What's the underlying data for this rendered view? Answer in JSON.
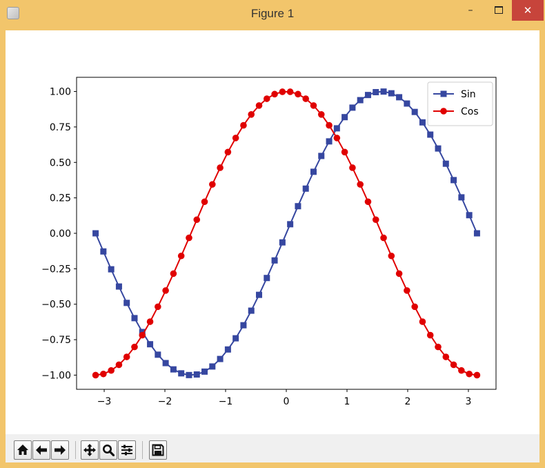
{
  "window": {
    "title": "Figure 1",
    "frame_color": "#f2c56b",
    "close_color": "#c7443b",
    "minimize_glyph": "–",
    "close_glyph": "✕"
  },
  "toolbar": {
    "buttons": [
      "home-icon",
      "back-arrow-icon",
      "forward-arrow-icon",
      "pan-icon",
      "zoom-icon",
      "configure-subplots-icon",
      "save-icon"
    ]
  },
  "chart_data": {
    "type": "line",
    "title": "",
    "xlabel": "",
    "ylabel": "",
    "xlim": [
      -3.455,
      3.455
    ],
    "ylim": [
      -1.1,
      1.1
    ],
    "xticks": [
      -3,
      -2,
      -1,
      0,
      1,
      2,
      3
    ],
    "xtick_labels": [
      "−3",
      "−2",
      "−1",
      "0",
      "1",
      "2",
      "3"
    ],
    "yticks": [
      -1.0,
      -0.75,
      -0.5,
      -0.25,
      0.0,
      0.25,
      0.5,
      0.75,
      1.0
    ],
    "ytick_labels": [
      "−1.00",
      "−0.75",
      "−0.50",
      "−0.25",
      "0.00",
      "0.25",
      "0.50",
      "0.75",
      "1.00"
    ],
    "grid": false,
    "legend_position": "upper-right",
    "x": [
      -3.1416,
      -3.0134,
      -2.8851,
      -2.7569,
      -2.6287,
      -2.5005,
      -2.3722,
      -2.244,
      -2.1158,
      -1.9875,
      -1.8593,
      -1.7311,
      -1.6029,
      -1.4746,
      -1.3464,
      -1.2182,
      -1.09,
      -0.9617,
      -0.8335,
      -0.7053,
      -0.577,
      -0.4488,
      -0.3206,
      -0.1924,
      -0.0641,
      0.0641,
      0.1924,
      0.3206,
      0.4488,
      0.577,
      0.7053,
      0.8335,
      0.9617,
      1.09,
      1.2182,
      1.3464,
      1.4746,
      1.6029,
      1.7311,
      1.8593,
      1.9875,
      2.1158,
      2.244,
      2.3722,
      2.5005,
      2.6287,
      2.7569,
      2.8851,
      3.0134,
      3.1416
    ],
    "series": [
      {
        "name": "Sin",
        "marker": "square",
        "color": "#3647a0",
        "values": [
          0.0,
          -0.1279,
          -0.2537,
          -0.3752,
          -0.4907,
          -0.5981,
          -0.6959,
          -0.7822,
          -0.8558,
          -0.9151,
          -0.9595,
          -0.9874,
          -0.9995,
          -0.9954,
          -0.9752,
          -0.939,
          -0.8862,
          -0.8191,
          -0.7403,
          -0.6482,
          -0.5455,
          -0.4339,
          -0.3151,
          -0.1912,
          -0.0641,
          0.0641,
          0.1912,
          0.3151,
          0.4339,
          0.5455,
          0.6482,
          0.7403,
          0.8191,
          0.8862,
          0.939,
          0.9752,
          0.9954,
          0.9995,
          0.9874,
          0.9595,
          0.9151,
          0.8558,
          0.7822,
          0.6959,
          0.5981,
          0.4907,
          0.3752,
          0.2537,
          0.1279,
          0.0
        ]
      },
      {
        "name": "Cos",
        "marker": "circle",
        "color": "#e00000",
        "values": [
          -1.0,
          -0.9918,
          -0.9673,
          -0.927,
          -0.8713,
          -0.8013,
          -0.7183,
          -0.6231,
          -0.5178,
          -0.4034,
          -0.2843,
          -0.1596,
          -0.0321,
          0.0961,
          0.2225,
          0.3449,
          0.4625,
          0.5728,
          0.6721,
          0.7614,
          0.8381,
          0.901,
          0.949,
          0.9815,
          0.9979,
          0.9979,
          0.9815,
          0.949,
          0.901,
          0.8381,
          0.7614,
          0.6721,
          0.5728,
          0.4625,
          0.3449,
          0.2225,
          0.0961,
          -0.0321,
          -0.1596,
          -0.2843,
          -0.4034,
          -0.5178,
          -0.6231,
          -0.7183,
          -0.8013,
          -0.8713,
          -0.927,
          -0.9673,
          -0.9918,
          -1.0
        ]
      }
    ]
  }
}
